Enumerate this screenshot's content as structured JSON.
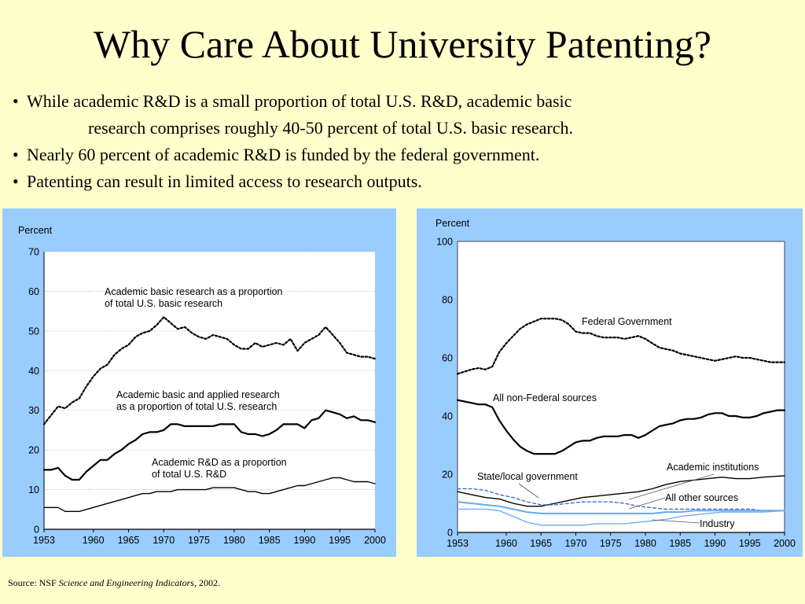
{
  "title": "Why Care About University Patenting?",
  "bullets": [
    {
      "text": "While academic R&D is a small proportion of total U.S. R&D, academic basic",
      "continuation": "research comprises roughly 40-50 percent of total U.S. basic research."
    },
    {
      "text": "Nearly 60 percent of academic R&D is funded by the federal government."
    },
    {
      "text": "Patenting can result in limited access to research outputs."
    }
  ],
  "bullet_glyph": "•",
  "source": {
    "prefix": "Source: NSF ",
    "italic": "Science and Engineering Indicators",
    "suffix": ", 2002."
  },
  "colors": {
    "background": "#ffffcc",
    "panel": "#99ccff",
    "plot_bg": "#ffffff",
    "line": "#000000",
    "dashed_blue": "#3366cc",
    "light_blue": "#66aaee"
  },
  "chart_data": [
    {
      "type": "line",
      "ylabel": "Percent",
      "ylim": [
        0,
        70
      ],
      "yticks": [
        0,
        10,
        20,
        30,
        40,
        50,
        60,
        70
      ],
      "xlim": [
        1953,
        2000
      ],
      "xticks": [
        1953,
        1960,
        1965,
        1970,
        1975,
        1980,
        1985,
        1990,
        1995,
        2000
      ],
      "grid": true,
      "series": [
        {
          "name": "Academic basic research as a proportion of total U.S. basic research",
          "label_lines": [
            "Academic basic research as a proportion",
            "of total U.S. basic research"
          ],
          "style": "dotted",
          "x": [
            1953,
            1955,
            1956,
            1957,
            1958,
            1959,
            1960,
            1961,
            1962,
            1963,
            1964,
            1965,
            1966,
            1967,
            1968,
            1969,
            1970,
            1971,
            1972,
            1973,
            1974,
            1975,
            1976,
            1977,
            1978,
            1979,
            1980,
            1981,
            1982,
            1983,
            1984,
            1985,
            1986,
            1987,
            1988,
            1989,
            1990,
            1991,
            1992,
            1993,
            1994,
            1995,
            1996,
            1997,
            1998,
            1999,
            2000
          ],
          "values": [
            26.5,
            31,
            30.5,
            32,
            33,
            36,
            38.5,
            40.5,
            41.5,
            44,
            45.5,
            46.5,
            48.5,
            49.5,
            50,
            51.5,
            53.5,
            52,
            50.5,
            51,
            49.5,
            48.5,
            48,
            49,
            48.5,
            48,
            46.5,
            45.5,
            45.5,
            47,
            46,
            46.5,
            47,
            46.5,
            48,
            45,
            47,
            48,
            49,
            51,
            49,
            47,
            44.5,
            44,
            43.5,
            43.5,
            43
          ]
        },
        {
          "name": "Academic basic and applied research as a proportion of total U.S. research",
          "label_lines": [
            "Academic basic and applied research",
            "as a proportion of total U.S. research"
          ],
          "style": "solid",
          "x": [
            1953,
            1954,
            1955,
            1956,
            1957,
            1958,
            1959,
            1960,
            1961,
            1962,
            1963,
            1964,
            1965,
            1966,
            1967,
            1968,
            1969,
            1970,
            1971,
            1972,
            1973,
            1974,
            1975,
            1976,
            1977,
            1978,
            1979,
            1980,
            1981,
            1982,
            1983,
            1984,
            1985,
            1986,
            1987,
            1988,
            1989,
            1990,
            1991,
            1992,
            1993,
            1994,
            1995,
            1996,
            1997,
            1998,
            1999,
            2000
          ],
          "values": [
            15,
            15,
            15.5,
            13.5,
            12.5,
            12.5,
            14.5,
            16,
            17.5,
            17.5,
            19,
            20,
            21.5,
            22.5,
            24,
            24.5,
            24.5,
            25,
            26.5,
            26.5,
            26,
            26,
            26,
            26,
            26,
            26.5,
            26.5,
            26.5,
            24.5,
            24,
            24,
            23.5,
            24,
            25,
            26.5,
            26.5,
            26.5,
            25.5,
            27.5,
            28,
            30,
            29.5,
            29,
            28,
            28.5,
            27.5,
            27.5,
            27
          ]
        },
        {
          "name": "Academic R&D as a proportion of total U.S. R&D",
          "label_lines": [
            "Academic R&D as a proportion",
            "of total U.S. R&D"
          ],
          "style": "solid-thin",
          "x": [
            1953,
            1955,
            1956,
            1957,
            1958,
            1959,
            1960,
            1961,
            1962,
            1963,
            1964,
            1965,
            1966,
            1967,
            1968,
            1969,
            1970,
            1971,
            1972,
            1973,
            1974,
            1975,
            1976,
            1977,
            1978,
            1979,
            1980,
            1981,
            1982,
            1983,
            1984,
            1985,
            1986,
            1987,
            1988,
            1989,
            1990,
            1991,
            1992,
            1993,
            1994,
            1995,
            1996,
            1997,
            1998,
            1999,
            2000
          ],
          "values": [
            5.5,
            5.5,
            4.5,
            4.5,
            4.5,
            5,
            5.5,
            6,
            6.5,
            7,
            7.5,
            8,
            8.5,
            9,
            9,
            9.5,
            9.5,
            9.5,
            10,
            10,
            10,
            10,
            10,
            10.5,
            10.5,
            10.5,
            10.5,
            10,
            9.5,
            9.5,
            9,
            9,
            9.5,
            10,
            10.5,
            11,
            11,
            11.5,
            12,
            12.5,
            13,
            13,
            12.5,
            12,
            12,
            12,
            11.5
          ]
        }
      ]
    },
    {
      "type": "line",
      "ylabel": "Percent",
      "ylim": [
        0,
        100
      ],
      "yticks": [
        0,
        20,
        40,
        60,
        80,
        100
      ],
      "xlim": [
        1953,
        2000
      ],
      "xticks": [
        1953,
        1960,
        1965,
        1970,
        1975,
        1980,
        1985,
        1990,
        1995,
        2000
      ],
      "grid": false,
      "series": [
        {
          "name": "Federal Government",
          "style": "dotted",
          "x": [
            1953,
            1955,
            1956,
            1957,
            1958,
            1959,
            1960,
            1961,
            1962,
            1963,
            1964,
            1965,
            1966,
            1967,
            1968,
            1969,
            1970,
            1971,
            1972,
            1973,
            1974,
            1975,
            1976,
            1977,
            1978,
            1979,
            1980,
            1981,
            1982,
            1983,
            1984,
            1985,
            1986,
            1987,
            1988,
            1989,
            1990,
            1991,
            1992,
            1993,
            1994,
            1995,
            1996,
            1997,
            1998,
            1999,
            2000
          ],
          "values": [
            54.5,
            56,
            56.5,
            56,
            57,
            62,
            65,
            67.5,
            70,
            71.5,
            72.5,
            73.5,
            73.5,
            73.5,
            73,
            71.5,
            69,
            68.5,
            68.5,
            67.5,
            67,
            67,
            67,
            66.5,
            67,
            67.5,
            66.5,
            65,
            63.5,
            63,
            62.5,
            61.5,
            61,
            60.5,
            60,
            59.5,
            59,
            59.5,
            60,
            60.5,
            60,
            60,
            59.5,
            59,
            58.5,
            58.5,
            58.5
          ]
        },
        {
          "name": "All non-Federal sources",
          "style": "solid",
          "x": [
            1953,
            1955,
            1956,
            1957,
            1958,
            1959,
            1960,
            1961,
            1962,
            1963,
            1964,
            1965,
            1966,
            1967,
            1968,
            1969,
            1970,
            1971,
            1972,
            1973,
            1974,
            1975,
            1976,
            1977,
            1978,
            1979,
            1980,
            1981,
            1982,
            1983,
            1984,
            1985,
            1986,
            1987,
            1988,
            1989,
            1990,
            1991,
            1992,
            1993,
            1994,
            1995,
            1996,
            1997,
            1998,
            1999,
            2000
          ],
          "values": [
            45.5,
            44.5,
            44,
            44,
            43,
            38.5,
            35,
            32,
            29.5,
            28,
            27,
            27,
            27,
            27,
            28,
            29.5,
            31,
            31.5,
            31.5,
            32.5,
            33,
            33,
            33,
            33.5,
            33.5,
            32.5,
            33.5,
            35,
            36.5,
            37,
            37.5,
            38.5,
            39,
            39,
            39.5,
            40.5,
            41,
            41,
            40,
            40,
            39.5,
            39.5,
            40,
            41,
            41.5,
            42,
            42
          ]
        },
        {
          "name": "Academic institutions",
          "style": "solid-thin",
          "x": [
            1953,
            1955,
            1957,
            1959,
            1961,
            1963,
            1965,
            1967,
            1969,
            1971,
            1973,
            1975,
            1977,
            1979,
            1981,
            1983,
            1985,
            1987,
            1989,
            1991,
            1993,
            1995,
            1997,
            2000
          ],
          "values": [
            14,
            13,
            12,
            11.5,
            10,
            9,
            9,
            10,
            11,
            12,
            12.5,
            13,
            13.5,
            14,
            15,
            16.5,
            17.5,
            18,
            18.5,
            19,
            18.5,
            18.5,
            19,
            19.5
          ]
        },
        {
          "name": "State/local government",
          "style": "dashed-blue",
          "x": [
            1953,
            1955,
            1957,
            1959,
            1961,
            1963,
            1965,
            1967,
            1969,
            1971,
            1973,
            1975,
            1977,
            1979,
            1981,
            1983,
            1985,
            1987,
            1989,
            1991,
            1993,
            1995,
            1997,
            2000
          ],
          "values": [
            15,
            15,
            14.5,
            13,
            12,
            10.5,
            9.5,
            9.5,
            10,
            10.5,
            10.5,
            10.5,
            10,
            9,
            8.5,
            8,
            8,
            8,
            8,
            8,
            8,
            8,
            7.5,
            7.5
          ]
        },
        {
          "name": "All other sources",
          "style": "light-blue",
          "x": [
            1953,
            1955,
            1957,
            1959,
            1961,
            1963,
            1965,
            1967,
            1969,
            1971,
            1973,
            1975,
            1977,
            1979,
            1981,
            1983,
            1985,
            1987,
            1989,
            1991,
            1993,
            1995,
            1997,
            2000
          ],
          "values": [
            10.5,
            10,
            9.5,
            9,
            8,
            7,
            6.5,
            6.5,
            6.5,
            6.5,
            6.5,
            6.5,
            6.5,
            6.5,
            6.5,
            7,
            7,
            7.5,
            7.5,
            7.5,
            7.5,
            7.5,
            7.5,
            7.5
          ]
        },
        {
          "name": "Industry",
          "style": "light-blue-thin",
          "x": [
            1953,
            1955,
            1957,
            1959,
            1961,
            1963,
            1965,
            1967,
            1969,
            1971,
            1973,
            1975,
            1977,
            1979,
            1981,
            1983,
            1985,
            1987,
            1989,
            1991,
            1993,
            1995,
            1997,
            2000
          ],
          "values": [
            8,
            8,
            8,
            7.5,
            5.5,
            3.5,
            2.5,
            2.5,
            2.5,
            2.5,
            3,
            3,
            3,
            3.5,
            4,
            4.5,
            5.5,
            6,
            6.5,
            7,
            7,
            7,
            7,
            7.5
          ]
        }
      ]
    }
  ]
}
